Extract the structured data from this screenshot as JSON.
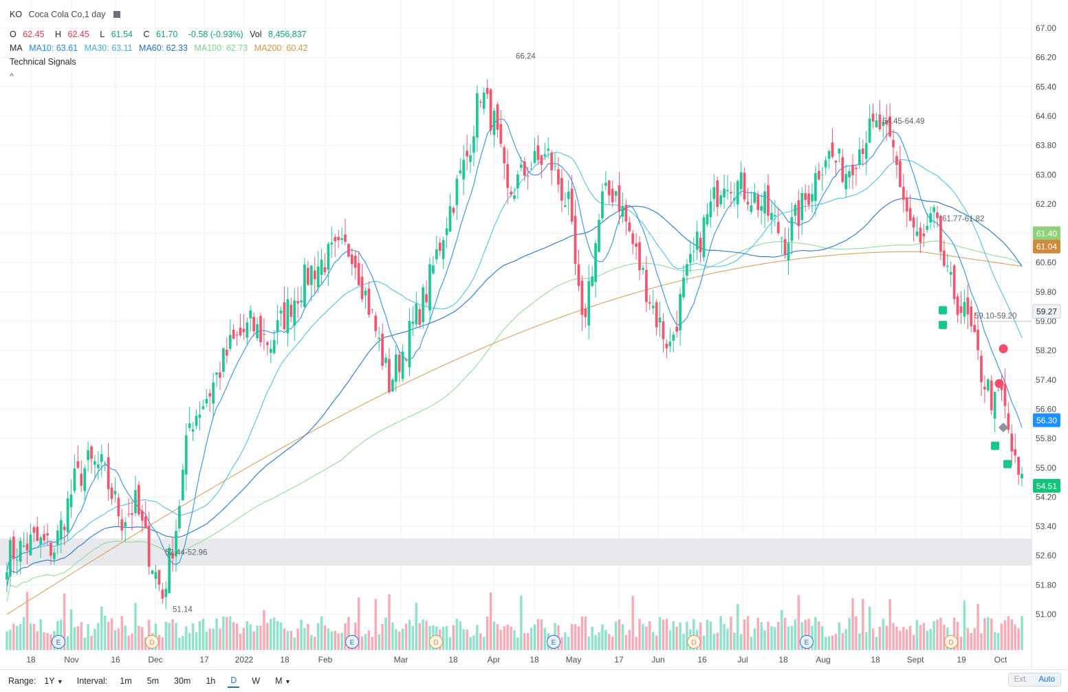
{
  "header": {
    "symbol": "KO",
    "title": "Coca Cola Co,1 day",
    "technical_signals": "Technical Signals",
    "collapse": "^"
  },
  "ohlc": {
    "o_label": "O",
    "o": "62.45",
    "h_label": "H",
    "h": "62.45",
    "l_label": "L",
    "l": "61.54",
    "c_label": "C",
    "c": "61.70",
    "change": "-0.58 (-0.93%)",
    "vol_label": "Vol",
    "vol": "8,456,837"
  },
  "ma_legend": {
    "label": "MA",
    "ma10": "MA10: 63.61",
    "ma30": "MA30: 63.11",
    "ma60": "MA60: 62.33",
    "ma100": "MA100: 62.73",
    "ma200": "MA200: 60.42"
  },
  "colors": {
    "up": "#1ec796",
    "down": "#f1566f",
    "ma10": "#2a8ff0",
    "ma30": "#4ec2e0",
    "ma60": "#2277d0",
    "ma100": "#8fdc98",
    "ma200": "#d9a25a",
    "grid": "#eef0f2"
  },
  "chart_data": {
    "type": "candlestick",
    "title": "KO Coca Cola Co, 1 day",
    "ylim": [
      50.6,
      67.3
    ],
    "y_ticks": [
      "67.00",
      "66.20",
      "65.40",
      "64.60",
      "63.80",
      "63.00",
      "62.20",
      "61.40",
      "60.60",
      "59.80",
      "59.00",
      "58.20",
      "57.40",
      "56.60",
      "55.80",
      "55.00",
      "54.20",
      "53.40",
      "52.60",
      "51.80",
      "51.00"
    ],
    "x_ticks": [
      "18",
      "Nov",
      "16",
      "Dec",
      "17",
      "2022",
      "18",
      "Feb",
      "Mar",
      "18",
      "Apr",
      "18",
      "May",
      "17",
      "Jun",
      "16",
      "Jul",
      "18",
      "Aug",
      "18",
      "Sept",
      "19",
      "Oct"
    ],
    "price_tags": [
      {
        "label": "61.40",
        "value": 61.4,
        "color": "#8fd177"
      },
      {
        "label": "61.04",
        "value": 61.04,
        "color": "#cf8b3b"
      },
      {
        "label": "59.27",
        "value": 59.27,
        "color": "#f2f3f5",
        "text_color": "#232a31"
      },
      {
        "label": "56.30",
        "value": 56.3,
        "color": "#1e90ff"
      },
      {
        "label": "54.51",
        "value": 54.51,
        "color": "#12c47a"
      }
    ],
    "annotations": [
      {
        "label": "66.24",
        "value": 66.24
      },
      {
        "label": "64.45-64.49",
        "value": 64.47
      },
      {
        "label": "61.77-61.82",
        "value": 61.8
      },
      {
        "label": "59.10-59.20",
        "value": 59.15
      },
      {
        "label": "52.44-52.96",
        "value": 52.7
      },
      {
        "label": "51.14",
        "value": 51.14
      }
    ],
    "support_band": {
      "low": 52.44,
      "high": 52.96
    },
    "event_markers": [
      "E",
      "D",
      "E",
      "D",
      "E",
      "D",
      "E",
      "D"
    ],
    "signals": [
      {
        "type": "bullish",
        "value": 59.3
      },
      {
        "type": "bullish",
        "value": 58.9
      },
      {
        "type": "bearish",
        "value": 58.25
      },
      {
        "type": "bearish",
        "value": 57.3
      },
      {
        "type": "neutral",
        "value": 56.1
      },
      {
        "type": "bullish",
        "value": 55.6
      },
      {
        "type": "bullish",
        "value": 55.1
      }
    ],
    "close_waypoints": [
      [
        0,
        52.6
      ],
      [
        8,
        53.0
      ],
      [
        14,
        52.8
      ],
      [
        20,
        54.6
      ],
      [
        24,
        55.1
      ],
      [
        28,
        55.0
      ],
      [
        34,
        53.6
      ],
      [
        38,
        54.0
      ],
      [
        42,
        52.7
      ],
      [
        46,
        51.5
      ],
      [
        50,
        53.4
      ],
      [
        54,
        56.2
      ],
      [
        60,
        57.1
      ],
      [
        66,
        58.3
      ],
      [
        72,
        58.9
      ],
      [
        78,
        58.4
      ],
      [
        84,
        59.5
      ],
      [
        90,
        60.4
      ],
      [
        96,
        60.8
      ],
      [
        102,
        61.0
      ],
      [
        108,
        59.1
      ],
      [
        113,
        57.3
      ],
      [
        118,
        58.4
      ],
      [
        124,
        59.8
      ],
      [
        130,
        61.8
      ],
      [
        136,
        63.5
      ],
      [
        140,
        65.3
      ],
      [
        144,
        64.4
      ],
      [
        148,
        62.4
      ],
      [
        154,
        63.2
      ],
      [
        160,
        63.5
      ],
      [
        166,
        62.1
      ],
      [
        170,
        58.8
      ],
      [
        176,
        62.3
      ],
      [
        180,
        62.6
      ],
      [
        186,
        60.8
      ],
      [
        192,
        59.1
      ],
      [
        196,
        58.3
      ],
      [
        200,
        59.9
      ],
      [
        206,
        61.6
      ],
      [
        212,
        63.0
      ],
      [
        218,
        62.6
      ],
      [
        224,
        62.1
      ],
      [
        230,
        61.2
      ],
      [
        236,
        62.3
      ],
      [
        242,
        63.6
      ],
      [
        248,
        63.1
      ],
      [
        254,
        64.1
      ],
      [
        258,
        64.3
      ],
      [
        262,
        63.6
      ],
      [
        266,
        62.0
      ],
      [
        270,
        61.0
      ],
      [
        274,
        61.8
      ],
      [
        278,
        60.1
      ],
      [
        284,
        59.0
      ],
      [
        288,
        57.6
      ],
      [
        292,
        56.7
      ],
      [
        294,
        57.0
      ],
      [
        298,
        55.0
      ],
      [
        300,
        54.5
      ]
    ]
  },
  "bottom_bar": {
    "range_label": "Range:",
    "range_value": "1Y",
    "interval_label": "Interval:",
    "intervals": [
      "1m",
      "5m",
      "30m",
      "1h",
      "D",
      "W",
      "M"
    ],
    "ext": "Ext.",
    "auto": "Auto"
  }
}
